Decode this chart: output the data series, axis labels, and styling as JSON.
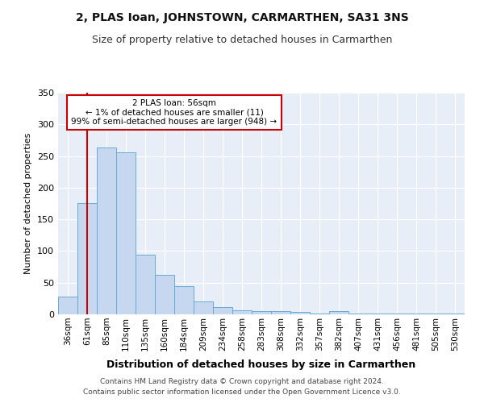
{
  "title1": "2, PLAS Ioan, JOHNSTOWN, CARMARTHEN, SA31 3NS",
  "title2": "Size of property relative to detached houses in Carmarthen",
  "xlabel": "Distribution of detached houses by size in Carmarthen",
  "ylabel": "Number of detached properties",
  "annotation_title": "2 PLAS Ioan: 56sqm",
  "annotation_line2": "← 1% of detached houses are smaller (11)",
  "annotation_line3": "99% of semi-detached houses are larger (948) →",
  "footer1": "Contains HM Land Registry data © Crown copyright and database right 2024.",
  "footer2": "Contains public sector information licensed under the Open Government Licence v3.0.",
  "categories": [
    "36sqm",
    "61sqm",
    "85sqm",
    "110sqm",
    "135sqm",
    "160sqm",
    "184sqm",
    "209sqm",
    "234sqm",
    "258sqm",
    "283sqm",
    "308sqm",
    "332sqm",
    "357sqm",
    "382sqm",
    "407sqm",
    "431sqm",
    "456sqm",
    "481sqm",
    "505sqm",
    "530sqm"
  ],
  "values": [
    28,
    176,
    263,
    256,
    94,
    62,
    45,
    20,
    11,
    7,
    5,
    5,
    4,
    1,
    5,
    1,
    1,
    1,
    1,
    1,
    1
  ],
  "bar_color": "#c5d8f0",
  "bar_edge_color": "#6aaad4",
  "vline_color": "#cc0000",
  "vline_x": 1.0,
  "annotation_box_color": "#ffffff",
  "annotation_box_edge": "#cc0000",
  "background_color": "#e8eef8",
  "ylim": [
    0,
    350
  ],
  "yticks": [
    0,
    50,
    100,
    150,
    200,
    250,
    300,
    350
  ]
}
